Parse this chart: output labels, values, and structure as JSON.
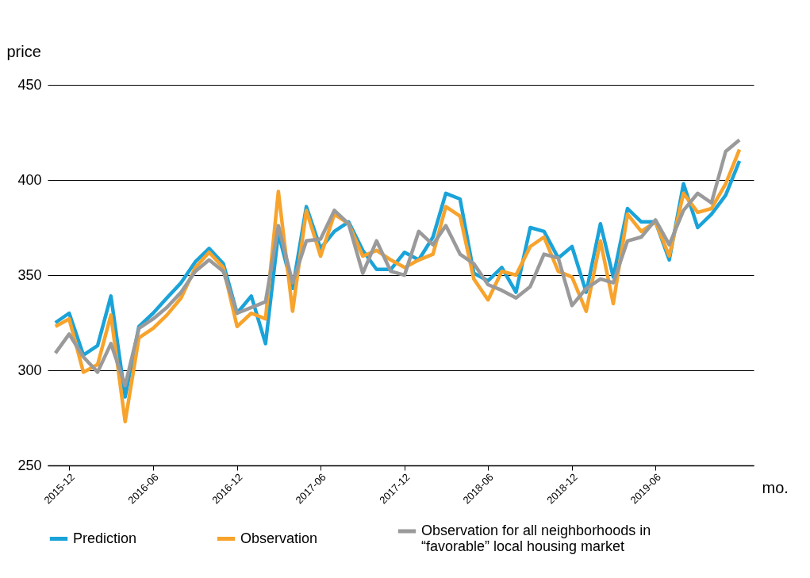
{
  "chart_data": {
    "type": "line",
    "xlabel": "mo.",
    "ylabel": "price",
    "x": [
      "2015-11",
      "2015-12",
      "2016-01",
      "2016-02",
      "2016-03",
      "2016-04",
      "2016-05",
      "2016-06",
      "2016-07",
      "2016-08",
      "2016-09",
      "2016-10",
      "2016-11",
      "2016-12",
      "2017-01",
      "2017-02",
      "2017-03",
      "2017-04",
      "2017-05",
      "2017-06",
      "2017-07",
      "2017-08",
      "2017-09",
      "2017-10",
      "2017-11",
      "2017-12",
      "2018-01",
      "2018-02",
      "2018-03",
      "2018-04",
      "2018-05",
      "2018-06",
      "2018-07",
      "2018-08",
      "2018-09",
      "2018-10",
      "2018-11",
      "2018-12",
      "2019-01",
      "2019-02",
      "2019-03",
      "2019-04",
      "2019-05",
      "2019-06",
      "2019-07",
      "2019-08",
      "2019-09",
      "2019-10",
      "2019-11",
      "2019-12"
    ],
    "series": [
      {
        "name": "Prediction",
        "color": "#1aa3d9",
        "values": [
          325,
          330,
          308,
          313,
          339,
          286,
          323,
          330,
          338,
          346,
          357,
          364,
          356,
          330,
          339,
          314,
          372,
          343,
          386,
          364,
          373,
          378,
          363,
          353,
          353,
          362,
          358,
          370,
          393,
          390,
          351,
          347,
          354,
          341,
          375,
          373,
          359,
          365,
          341,
          377,
          349,
          385,
          378,
          378,
          358,
          398,
          375,
          382,
          392,
          410
        ]
      },
      {
        "name": "Observation",
        "color": "#f7a32c",
        "values": [
          323,
          327,
          299,
          303,
          329,
          273,
          317,
          322,
          329,
          338,
          354,
          362,
          354,
          323,
          330,
          327,
          394,
          331,
          384,
          360,
          382,
          377,
          360,
          363,
          358,
          354,
          358,
          361,
          386,
          381,
          348,
          337,
          352,
          350,
          365,
          370,
          352,
          349,
          331,
          368,
          335,
          382,
          373,
          378,
          360,
          393,
          383,
          385,
          398,
          416
        ]
      },
      {
        "name": "Observation for all neighborhoods  in “favorable” local housing market",
        "color": "#9a9a9a",
        "values": [
          309,
          319,
          307,
          299,
          314,
          292,
          322,
          327,
          333,
          341,
          352,
          358,
          352,
          330,
          333,
          336,
          376,
          346,
          368,
          369,
          384,
          377,
          351,
          368,
          352,
          350,
          373,
          366,
          376,
          361,
          356,
          345,
          342,
          338,
          344,
          361,
          359,
          334,
          343,
          348,
          346,
          368,
          370,
          379,
          366,
          384,
          393,
          388,
          415,
          421
        ]
      }
    ],
    "xlim": [
      "2015-10-15",
      "2020-01-01"
    ],
    "xticks": [
      "2015-12",
      "2016-06",
      "2016-12",
      "2017-06",
      "2017-12",
      "2018-06",
      "2018-12",
      "2019-06"
    ],
    "ylim": [
      250,
      450
    ],
    "yticks": [
      250,
      300,
      350,
      400,
      450
    ],
    "grid": "y",
    "legend": "bottom",
    "line_style": "solid",
    "marker": "none"
  }
}
